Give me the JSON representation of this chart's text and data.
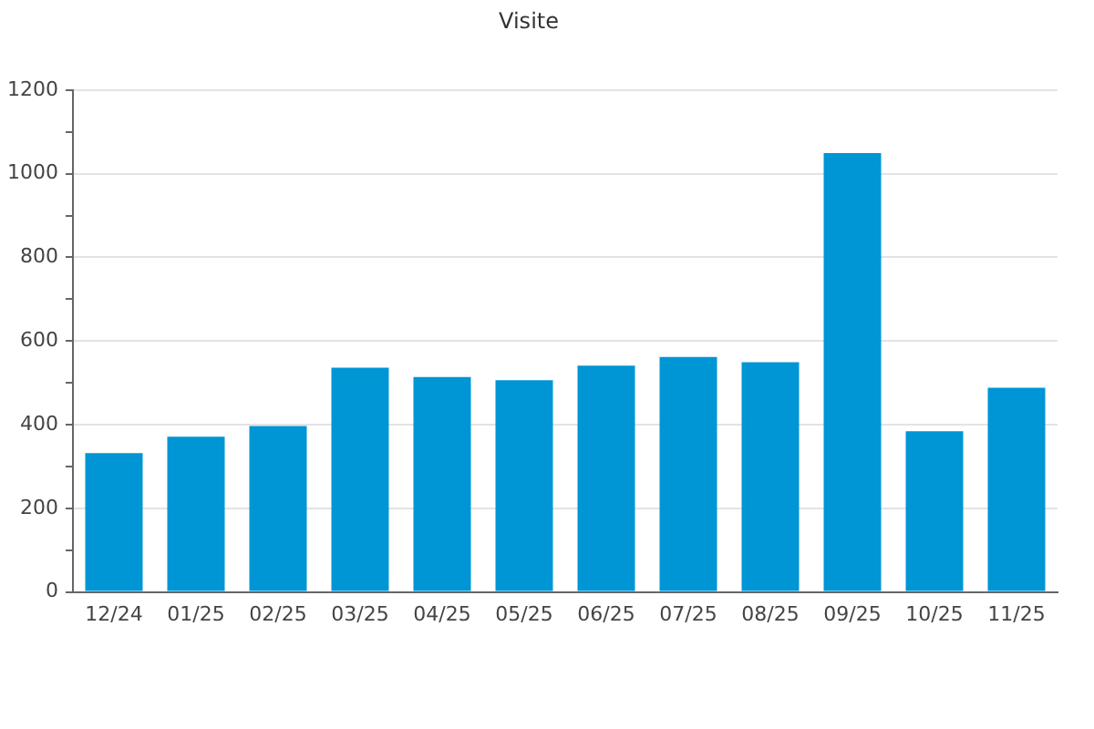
{
  "chart_data": {
    "type": "bar",
    "title": "Visite",
    "categories": [
      "12/24",
      "01/25",
      "02/25",
      "03/25",
      "04/25",
      "05/25",
      "06/25",
      "07/25",
      "08/25",
      "09/25",
      "10/25",
      "11/25"
    ],
    "values": [
      332,
      371,
      397,
      536,
      514,
      506,
      541,
      562,
      549,
      1049,
      384,
      488
    ],
    "color": "#0095d5",
    "ylim": [
      0,
      1200
    ],
    "yticks": [
      0,
      {
        "value": 100,
        "label": null
      },
      200,
      {
        "value": 300,
        "label": null
      },
      400,
      {
        "value": 500,
        "label": null
      },
      600,
      {
        "value": 700,
        "label": null
      },
      800,
      {
        "value": 900,
        "label": null
      },
      1000,
      {
        "value": 1100,
        "label": null
      },
      1200
    ],
    "grid": "y",
    "legend": false
  }
}
